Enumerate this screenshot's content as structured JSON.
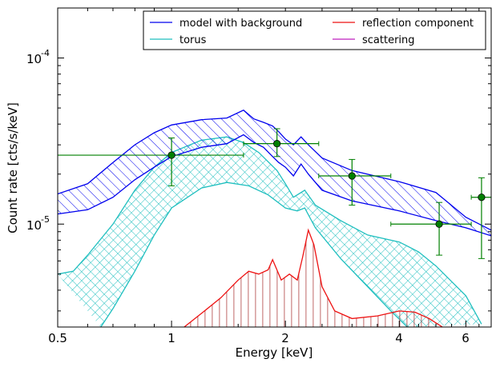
{
  "chart_data": {
    "type": "line",
    "xlabel": "Energy [keV]",
    "ylabel": "Count rate [cts/s/keV]",
    "x_scale": "log",
    "y_scale": "log",
    "xlim": [
      0.5,
      7.0
    ],
    "ylim": [
      2.4e-06,
      0.0002
    ],
    "x_ticks": [
      {
        "value": 0.5,
        "label": "0.5"
      },
      {
        "value": 1,
        "label": "1"
      },
      {
        "value": 2,
        "label": "2"
      },
      {
        "value": 4,
        "label": "4"
      },
      {
        "value": 6,
        "label": "6"
      }
    ],
    "y_ticks": [
      {
        "value": 1e-05,
        "base": "10",
        "exp": "-5"
      },
      {
        "value": 0.0001,
        "base": "10",
        "exp": "-4"
      }
    ],
    "legend": {
      "placement": "top-right",
      "entries": [
        {
          "label": "model with background",
          "color": "#0000ee"
        },
        {
          "label": "reflection component",
          "color": "#ee1111"
        },
        {
          "label": "torus",
          "color": "#1fbfbf"
        },
        {
          "label": "scattering",
          "color": "#bf1fbf"
        }
      ]
    },
    "bands": [
      {
        "name": "model with background",
        "color": "#0000ee",
        "hatch": "diagonal",
        "upper": [
          [
            0.5,
            1.52e-05
          ],
          [
            0.6,
            1.75e-05
          ],
          [
            0.7,
            2.35e-05
          ],
          [
            0.8,
            3e-05
          ],
          [
            0.9,
            3.55e-05
          ],
          [
            1.0,
            3.95e-05
          ],
          [
            1.2,
            4.25e-05
          ],
          [
            1.4,
            4.35e-05
          ],
          [
            1.55,
            4.85e-05
          ],
          [
            1.65,
            4.3e-05
          ],
          [
            1.75,
            4.1e-05
          ],
          [
            1.85,
            3.9e-05
          ],
          [
            1.92,
            3.6e-05
          ],
          [
            2.0,
            3.25e-05
          ],
          [
            2.1,
            3e-05
          ],
          [
            2.2,
            3.35e-05
          ],
          [
            2.3,
            3e-05
          ],
          [
            2.5,
            2.5e-05
          ],
          [
            3.0,
            2.1e-05
          ],
          [
            4.0,
            1.8e-05
          ],
          [
            5.0,
            1.55e-05
          ],
          [
            6.0,
            1.1e-05
          ],
          [
            7.0,
            9.2e-06
          ]
        ],
        "lower": [
          [
            0.5,
            1.15e-05
          ],
          [
            0.6,
            1.22e-05
          ],
          [
            0.7,
            1.45e-05
          ],
          [
            0.8,
            1.85e-05
          ],
          [
            0.9,
            2.2e-05
          ],
          [
            1.0,
            2.55e-05
          ],
          [
            1.2,
            2.9e-05
          ],
          [
            1.4,
            3.05e-05
          ],
          [
            1.55,
            3.45e-05
          ],
          [
            1.65,
            3.1e-05
          ],
          [
            1.75,
            2.9e-05
          ],
          [
            1.85,
            2.55e-05
          ],
          [
            1.92,
            2.35e-05
          ],
          [
            2.0,
            2.2e-05
          ],
          [
            2.1,
            1.95e-05
          ],
          [
            2.2,
            2.3e-05
          ],
          [
            2.3,
            2e-05
          ],
          [
            2.5,
            1.6e-05
          ],
          [
            3.0,
            1.38e-05
          ],
          [
            4.0,
            1.2e-05
          ],
          [
            5.0,
            1.05e-05
          ],
          [
            6.0,
            9.5e-06
          ],
          [
            7.0,
            8.5e-06
          ]
        ]
      },
      {
        "name": "torus",
        "color": "#1fbfbf",
        "hatch": "cross",
        "upper": [
          [
            0.5,
            5e-06
          ],
          [
            0.55,
            5.2e-06
          ],
          [
            0.6,
            6.5e-06
          ],
          [
            0.7,
            1e-05
          ],
          [
            0.8,
            1.6e-05
          ],
          [
            0.9,
            2.2e-05
          ],
          [
            1.0,
            2.7e-05
          ],
          [
            1.2,
            3.2e-05
          ],
          [
            1.4,
            3.35e-05
          ],
          [
            1.55,
            3.1e-05
          ],
          [
            1.7,
            2.7e-05
          ],
          [
            1.9,
            2.1e-05
          ],
          [
            2.0,
            1.75e-05
          ],
          [
            2.1,
            1.45e-05
          ],
          [
            2.25,
            1.6e-05
          ],
          [
            2.4,
            1.3e-05
          ],
          [
            2.8,
            1.05e-05
          ],
          [
            3.3,
            8.6e-06
          ],
          [
            4.0,
            7.8e-06
          ],
          [
            4.5,
            6.8e-06
          ],
          [
            5.0,
            5.6e-06
          ],
          [
            6.0,
            3.7e-06
          ],
          [
            6.6,
            2.5e-06
          ]
        ],
        "lower": [
          [
            0.65,
            2.4e-06
          ],
          [
            0.7,
            3.1e-06
          ],
          [
            0.8,
            5.2e-06
          ],
          [
            0.9,
            8.6e-06
          ],
          [
            1.0,
            1.25e-05
          ],
          [
            1.2,
            1.65e-05
          ],
          [
            1.4,
            1.78e-05
          ],
          [
            1.6,
            1.7e-05
          ],
          [
            1.8,
            1.5e-05
          ],
          [
            2.0,
            1.25e-05
          ],
          [
            2.15,
            1.2e-05
          ],
          [
            2.25,
            1.25e-05
          ],
          [
            2.4,
            9.5e-06
          ],
          [
            2.8,
            6.2e-06
          ],
          [
            3.3,
            4.2e-06
          ],
          [
            3.8,
            3e-06
          ],
          [
            4.2,
            2.4e-06
          ]
        ]
      }
    ],
    "series": [
      {
        "name": "reflection component",
        "color": "#ee1111",
        "points": [
          [
            1.08,
            2.4e-06
          ],
          [
            1.2,
            2.9e-06
          ],
          [
            1.35,
            3.6e-06
          ],
          [
            1.5,
            4.6e-06
          ],
          [
            1.6,
            5.2e-06
          ],
          [
            1.7,
            5e-06
          ],
          [
            1.8,
            5.3e-06
          ],
          [
            1.85,
            6.1e-06
          ],
          [
            1.95,
            4.6e-06
          ],
          [
            2.05,
            5e-06
          ],
          [
            2.15,
            4.6e-06
          ],
          [
            2.22,
            6.3e-06
          ],
          [
            2.3,
            9.2e-06
          ],
          [
            2.38,
            7.5e-06
          ],
          [
            2.5,
            4.2e-06
          ],
          [
            2.7,
            3e-06
          ],
          [
            3.0,
            2.7e-06
          ],
          [
            3.5,
            2.8e-06
          ],
          [
            4.0,
            3e-06
          ],
          [
            4.4,
            2.95e-06
          ],
          [
            4.8,
            2.7e-06
          ],
          [
            5.2,
            2.4e-06
          ]
        ],
        "drop_lines": true
      }
    ],
    "data_points": [
      {
        "x": 1.0,
        "y": 2.6e-05,
        "x_err": [
          0.5,
          1.55
        ],
        "y_err": [
          1.7e-05,
          3.3e-05
        ]
      },
      {
        "x": 1.9,
        "y": 3.05e-05,
        "x_err": [
          1.55,
          2.45
        ],
        "y_err": [
          2.55e-05,
          3.75e-05
        ]
      },
      {
        "x": 3.0,
        "y": 1.95e-05,
        "x_err": [
          2.45,
          3.8
        ],
        "y_err": [
          1.3e-05,
          2.45e-05
        ]
      },
      {
        "x": 5.1,
        "y": 1e-05,
        "x_err": [
          3.8,
          6.2
        ],
        "y_err": [
          6.5e-06,
          1.35e-05
        ]
      },
      {
        "x": 6.6,
        "y": 1.45e-05,
        "x_err": [
          6.2,
          7.0
        ],
        "y_err": [
          6.2e-06,
          1.9e-05
        ]
      }
    ],
    "data_color": "#008000"
  }
}
